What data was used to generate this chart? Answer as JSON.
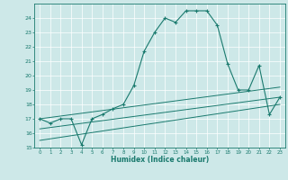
{
  "title": "",
  "xlabel": "Humidex (Indice chaleur)",
  "bg_color": "#cde8e8",
  "grid_color": "#ffffff",
  "line_color": "#1a7a6e",
  "xlim": [
    -0.5,
    23.5
  ],
  "ylim": [
    15,
    25
  ],
  "yticks": [
    15,
    16,
    17,
    18,
    19,
    20,
    21,
    22,
    23,
    24
  ],
  "xticks": [
    0,
    1,
    2,
    3,
    4,
    5,
    6,
    7,
    8,
    9,
    10,
    11,
    12,
    13,
    14,
    15,
    16,
    17,
    18,
    19,
    20,
    21,
    22,
    23
  ],
  "series": [
    {
      "x": [
        0,
        1,
        2,
        3,
        4,
        5,
        6,
        7,
        8,
        9,
        10,
        11,
        12,
        13,
        14,
        15,
        16,
        17,
        18,
        19,
        20,
        21,
        22,
        23
      ],
      "y": [
        17.0,
        16.7,
        17.0,
        17.0,
        15.2,
        17.0,
        17.3,
        17.7,
        18.0,
        19.3,
        21.7,
        23.0,
        24.0,
        23.7,
        24.5,
        24.5,
        24.5,
        23.5,
        20.8,
        19.0,
        19.0,
        20.7,
        17.3,
        18.5
      ],
      "marker": "+",
      "lw": 0.8,
      "ms": 3.5,
      "mew": 0.8
    },
    {
      "x": [
        0,
        23
      ],
      "y": [
        17.0,
        19.2
      ],
      "marker": null,
      "lw": 0.7,
      "ms": 0,
      "mew": 0
    },
    {
      "x": [
        0,
        23
      ],
      "y": [
        16.3,
        18.5
      ],
      "marker": null,
      "lw": 0.7,
      "ms": 0,
      "mew": 0
    },
    {
      "x": [
        0,
        23
      ],
      "y": [
        15.5,
        18.0
      ],
      "marker": null,
      "lw": 0.7,
      "ms": 0,
      "mew": 0
    }
  ]
}
